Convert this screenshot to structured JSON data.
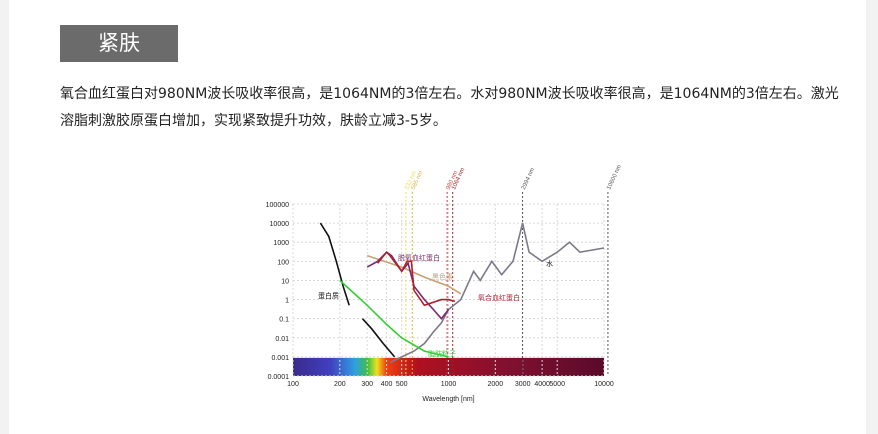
{
  "header": {
    "title": "紧肤"
  },
  "paragraph": "氧合血红蛋白对980NM波长吸收率很高，是1064NM的3倍左右。水对980NM波长吸收率很高，是1064NM的3倍左右。激光溶脂刺激胶原蛋白增加，实现紧致提升功效，肤龄立减3-5岁。",
  "chart_data": {
    "type": "line",
    "x_label": "Wavelength [nm]",
    "log_x": true,
    "log_y": true,
    "xlim": [
      100,
      10000
    ],
    "ylim": [
      0.0001,
      100000
    ],
    "xticks": [
      100,
      200,
      300,
      400,
      500,
      1000,
      2000,
      3000,
      4000,
      5000,
      10000
    ],
    "yticks": [
      0.0001,
      0.001,
      0.01,
      0.1,
      1,
      10,
      100,
      1000,
      10000,
      100000
    ],
    "markers": [
      {
        "value": 532,
        "label": "532 nm",
        "color": "#e8e060"
      },
      {
        "value": 585,
        "label": "585 nm",
        "color": "#e0b040"
      },
      {
        "value": 980,
        "label": "980 nm",
        "color": "#c04040"
      },
      {
        "value": 1064,
        "label": "1064 nm",
        "color": "#a02020"
      },
      {
        "value": 2994,
        "label": "2994 nm",
        "color": "#555555"
      },
      {
        "value": 10600,
        "label": "10600 nm",
        "color": "#555555"
      }
    ],
    "series": [
      {
        "name": "蛋白质",
        "color": "#111111",
        "x": [
          150,
          170,
          190,
          210,
          230,
          250,
          280,
          320,
          380,
          450
        ],
        "values": [
          10000,
          2000,
          100,
          5,
          0.5,
          null,
          0.1,
          0.03,
          0.005,
          0.001
        ]
      },
      {
        "name": "水",
        "color": "#7a7a8a",
        "x": [
          420,
          500,
          600,
          700,
          800,
          900,
          1000,
          1200,
          1450,
          1600,
          1900,
          2200,
          2600,
          2994,
          3300,
          4000,
          5000,
          6000,
          7000,
          10000
        ],
        "values": [
          0.0005,
          0.001,
          0.002,
          0.005,
          0.02,
          0.06,
          0.3,
          1,
          30,
          10,
          100,
          20,
          100,
          10000,
          300,
          100,
          300,
          1000,
          300,
          500
        ]
      },
      {
        "name": "黑色素",
        "color": "#c8a070",
        "x": [
          300,
          500,
          700,
          1000,
          1200
        ],
        "values": [
          200,
          50,
          15,
          5,
          2
        ]
      },
      {
        "name": "脱氧血红蛋白",
        "color": "#7a2a6a",
        "x": [
          300,
          350,
          400,
          430,
          500,
          550,
          600,
          700,
          800,
          900,
          1000
        ],
        "values": [
          50,
          100,
          300,
          200,
          30,
          80,
          5,
          1,
          0.3,
          0.1,
          0.3
        ]
      },
      {
        "name": "氧合血红蛋白",
        "color": "#b02030",
        "x": [
          350,
          400,
          420,
          500,
          542,
          577,
          600,
          700,
          900,
          1000,
          1100
        ],
        "values": [
          80,
          300,
          200,
          30,
          100,
          100,
          3,
          0.5,
          1,
          1,
          0.8
        ]
      },
      {
        "name": "脂肪粒子",
        "color": "#30d030",
        "x": [
          200,
          300,
          400,
          500,
          700,
          1000
        ],
        "values": [
          10,
          0.5,
          0.05,
          0.01,
          0.002,
          0.001
        ]
      }
    ]
  }
}
